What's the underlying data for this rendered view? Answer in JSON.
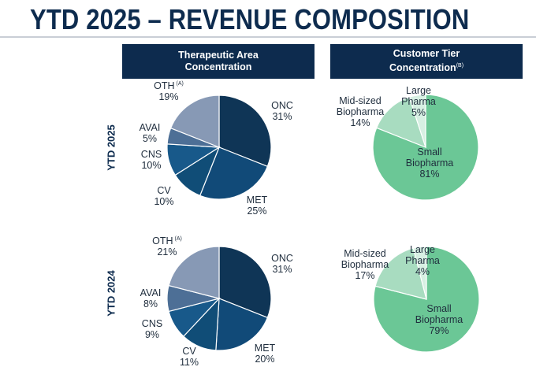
{
  "page": {
    "title": "YTD 2025 – REVENUE COMPOSITION"
  },
  "headers": {
    "therapeutic_line1": "Therapeutic Area",
    "therapeutic_line2": "Concentration",
    "tier_line1": "Customer Tier",
    "tier_line2": "Concentration",
    "tier_note": "(B)"
  },
  "rows": {
    "ytd2025": "YTD 2025",
    "ytd2024": "YTD 2024"
  },
  "colors": {
    "navy": "#0d2b4e",
    "ONC": "#0f3556",
    "MET": "#114a78",
    "CV": "#104d77",
    "CNS": "#18598a",
    "AVAI": "#4d6f96",
    "OTH": "#8799b5",
    "Small Biopharma": "#6bc796",
    "Mid-sized Biopharma": "#a8dcc0",
    "Large Pharma": "#d7f0e3"
  },
  "chart_data": [
    {
      "type": "pie",
      "group": "Therapeutic Area Concentration",
      "period": "YTD 2025",
      "slices": [
        {
          "label": "ONC",
          "value": 31
        },
        {
          "label": "MET",
          "value": 25
        },
        {
          "label": "CV",
          "value": 10
        },
        {
          "label": "CNS",
          "value": 10
        },
        {
          "label": "AVAI",
          "value": 5
        },
        {
          "label": "OTH",
          "value": 19,
          "note": "(A)"
        }
      ]
    },
    {
      "type": "pie",
      "group": "Customer Tier Concentration",
      "period": "YTD 2025",
      "slices": [
        {
          "label": "Small Biopharma",
          "value": 81
        },
        {
          "label": "Mid-sized Biopharma",
          "value": 14
        },
        {
          "label": "Large Pharma",
          "value": 5
        }
      ]
    },
    {
      "type": "pie",
      "group": "Therapeutic Area Concentration",
      "period": "YTD 2024",
      "slices": [
        {
          "label": "ONC",
          "value": 31
        },
        {
          "label": "MET",
          "value": 20
        },
        {
          "label": "CV",
          "value": 11
        },
        {
          "label": "CNS",
          "value": 9
        },
        {
          "label": "AVAI",
          "value": 8
        },
        {
          "label": "OTH",
          "value": 21,
          "note": "(A)"
        }
      ]
    },
    {
      "type": "pie",
      "group": "Customer Tier Concentration",
      "period": "YTD 2024",
      "slices": [
        {
          "label": "Small Biopharma",
          "value": 79
        },
        {
          "label": "Mid-sized Biopharma",
          "value": 17
        },
        {
          "label": "Large Pharma",
          "value": 4
        }
      ]
    }
  ]
}
